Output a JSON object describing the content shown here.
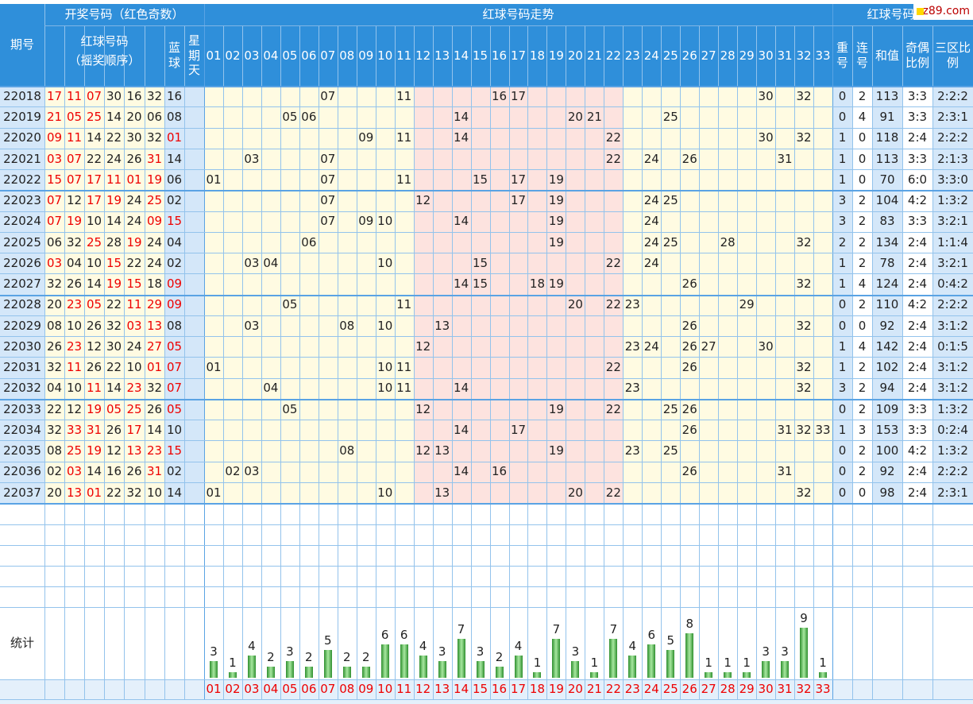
{
  "header": {
    "period": "期号",
    "draw": "开奖号码（红色奇数）",
    "red_balls": "红球号码",
    "red_order": "（摇奖顺序）",
    "blue": "蓝球",
    "weekday": "星期天",
    "trend": "红球号码走势",
    "analysis": "红球号码分析",
    "repeat": "重号",
    "consecutive": "连号",
    "sum": "和值",
    "odd_even": "奇偶比例",
    "zones": "三区比例"
  },
  "watermark": "cz89.com",
  "columns": [
    "01",
    "02",
    "03",
    "04",
    "05",
    "06",
    "07",
    "08",
    "09",
    "10",
    "11",
    "12",
    "13",
    "14",
    "15",
    "16",
    "17",
    "18",
    "19",
    "20",
    "21",
    "22",
    "23",
    "24",
    "25",
    "26",
    "27",
    "28",
    "29",
    "30",
    "31",
    "32",
    "33"
  ],
  "rows": [
    {
      "period": "22018",
      "red": [
        "17",
        "11",
        "07",
        "30",
        "16",
        "32"
      ],
      "blue": "16",
      "repeat": 0,
      "consecutive": 2,
      "sum": 113,
      "odd_even": "3:3",
      "zones": "2:2:2"
    },
    {
      "period": "22019",
      "red": [
        "21",
        "05",
        "25",
        "14",
        "20",
        "06"
      ],
      "blue": "08",
      "repeat": 0,
      "consecutive": 4,
      "sum": 91,
      "odd_even": "3:3",
      "zones": "2:3:1"
    },
    {
      "period": "22020",
      "red": [
        "09",
        "11",
        "14",
        "22",
        "30",
        "32"
      ],
      "blue": "01",
      "repeat": 1,
      "consecutive": 0,
      "sum": 118,
      "odd_even": "2:4",
      "zones": "2:2:2"
    },
    {
      "period": "22021",
      "red": [
        "03",
        "07",
        "22",
        "24",
        "26",
        "31"
      ],
      "blue": "14",
      "repeat": 1,
      "consecutive": 0,
      "sum": 113,
      "odd_even": "3:3",
      "zones": "2:1:3"
    },
    {
      "period": "22022",
      "red": [
        "15",
        "07",
        "17",
        "11",
        "01",
        "19"
      ],
      "blue": "06",
      "repeat": 1,
      "consecutive": 0,
      "sum": 70,
      "odd_even": "6:0",
      "zones": "3:3:0"
    },
    {
      "period": "22023",
      "red": [
        "07",
        "12",
        "17",
        "19",
        "24",
        "25"
      ],
      "blue": "02",
      "repeat": 3,
      "consecutive": 2,
      "sum": 104,
      "odd_even": "4:2",
      "zones": "1:3:2"
    },
    {
      "period": "22024",
      "red": [
        "07",
        "19",
        "10",
        "14",
        "24",
        "09"
      ],
      "blue": "15",
      "repeat": 3,
      "consecutive": 2,
      "sum": 83,
      "odd_even": "3:3",
      "zones": "3:2:1"
    },
    {
      "period": "22025",
      "red": [
        "06",
        "32",
        "25",
        "28",
        "19",
        "24"
      ],
      "blue": "04",
      "repeat": 2,
      "consecutive": 2,
      "sum": 134,
      "odd_even": "2:4",
      "zones": "1:1:4"
    },
    {
      "period": "22026",
      "red": [
        "03",
        "04",
        "10",
        "15",
        "22",
        "24"
      ],
      "blue": "02",
      "repeat": 1,
      "consecutive": 2,
      "sum": 78,
      "odd_even": "2:4",
      "zones": "3:2:1"
    },
    {
      "period": "22027",
      "red": [
        "32",
        "26",
        "14",
        "19",
        "15",
        "18"
      ],
      "blue": "09",
      "repeat": 1,
      "consecutive": 4,
      "sum": 124,
      "odd_even": "2:4",
      "zones": "0:4:2"
    },
    {
      "period": "22028",
      "red": [
        "20",
        "23",
        "05",
        "22",
        "11",
        "29"
      ],
      "blue": "09",
      "repeat": 0,
      "consecutive": 2,
      "sum": 110,
      "odd_even": "4:2",
      "zones": "2:2:2"
    },
    {
      "period": "22029",
      "red": [
        "08",
        "10",
        "26",
        "32",
        "03",
        "13"
      ],
      "blue": "08",
      "repeat": 0,
      "consecutive": 0,
      "sum": 92,
      "odd_even": "2:4",
      "zones": "3:1:2"
    },
    {
      "period": "22030",
      "red": [
        "26",
        "23",
        "12",
        "30",
        "24",
        "27"
      ],
      "blue": "05",
      "repeat": 1,
      "consecutive": 4,
      "sum": 142,
      "odd_even": "2:4",
      "zones": "0:1:5"
    },
    {
      "period": "22031",
      "red": [
        "32",
        "11",
        "26",
        "22",
        "10",
        "01"
      ],
      "blue": "07",
      "repeat": 1,
      "consecutive": 2,
      "sum": 102,
      "odd_even": "2:4",
      "zones": "3:1:2"
    },
    {
      "period": "22032",
      "red": [
        "04",
        "10",
        "11",
        "14",
        "23",
        "32"
      ],
      "blue": "07",
      "repeat": 3,
      "consecutive": 2,
      "sum": 94,
      "odd_even": "2:4",
      "zones": "3:1:2"
    },
    {
      "period": "22033",
      "red": [
        "22",
        "12",
        "19",
        "05",
        "25",
        "26"
      ],
      "blue": "05",
      "repeat": 0,
      "consecutive": 2,
      "sum": 109,
      "odd_even": "3:3",
      "zones": "1:3:2"
    },
    {
      "period": "22034",
      "red": [
        "32",
        "33",
        "31",
        "26",
        "17",
        "14"
      ],
      "blue": "10",
      "repeat": 1,
      "consecutive": 3,
      "sum": 153,
      "odd_even": "3:3",
      "zones": "0:2:4"
    },
    {
      "period": "22035",
      "red": [
        "08",
        "25",
        "19",
        "12",
        "13",
        "23"
      ],
      "blue": "15",
      "repeat": 0,
      "consecutive": 2,
      "sum": 100,
      "odd_even": "4:2",
      "zones": "1:3:2"
    },
    {
      "period": "22036",
      "red": [
        "02",
        "03",
        "14",
        "16",
        "26",
        "31"
      ],
      "blue": "02",
      "repeat": 0,
      "consecutive": 2,
      "sum": 92,
      "odd_even": "2:4",
      "zones": "2:2:2"
    },
    {
      "period": "22037",
      "red": [
        "20",
        "13",
        "01",
        "22",
        "32",
        "10"
      ],
      "blue": "14",
      "repeat": 0,
      "consecutive": 0,
      "sum": 98,
      "odd_even": "2:4",
      "zones": "2:3:1"
    }
  ],
  "stats": {
    "label": "统计",
    "counts": [
      3,
      1,
      4,
      2,
      3,
      2,
      5,
      2,
      2,
      6,
      6,
      4,
      3,
      7,
      3,
      2,
      4,
      1,
      7,
      3,
      1,
      7,
      4,
      6,
      5,
      8,
      1,
      1,
      1,
      3,
      3,
      9,
      1
    ]
  }
}
